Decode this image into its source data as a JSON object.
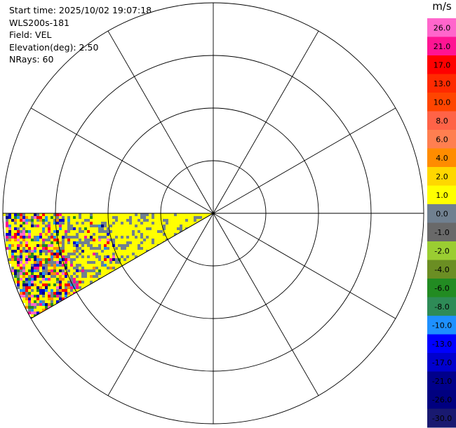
{
  "info": {
    "start_time": "Start time: 2025/10/02 19:07:18",
    "instrument": "WLS200s-181",
    "field": "Field: VEL",
    "elevation": "Elevation(deg): 2.50",
    "nrays": "NRays: 60"
  },
  "chart_data": {
    "type": "ppi",
    "field": "VEL",
    "units": "m/s",
    "elevation_deg": 2.5,
    "n_rays": 60,
    "sector_azimuth_deg": [
      240,
      270
    ],
    "range_rings": 4,
    "spoke_step_deg": 30,
    "colorbar": {
      "label": "m/s",
      "ticks": [
        "26.0",
        "21.0",
        "17.0",
        "13.0",
        "10.0",
        "8.0",
        "6.0",
        "4.0",
        "2.0",
        "1.0",
        "0.0",
        "-1.0",
        "-2.0",
        "-4.0",
        "-6.0",
        "-8.0",
        "-10.0",
        "-13.0",
        "-17.0",
        "-21.0",
        "-26.0",
        "-30.0"
      ],
      "colors": [
        "#ff66cc",
        "#ff1493",
        "#ff0000",
        "#ff2a00",
        "#ff4500",
        "#ff6347",
        "#ff7f50",
        "#ff8c00",
        "#ffd700",
        "#ffff00",
        "#708090",
        "#696969",
        "#9acd32",
        "#6b8e23",
        "#228b22",
        "#2e8b57",
        "#1e90ff",
        "#0000ff",
        "#0000cd",
        "#00008b",
        "#000080",
        "#191970"
      ]
    }
  }
}
